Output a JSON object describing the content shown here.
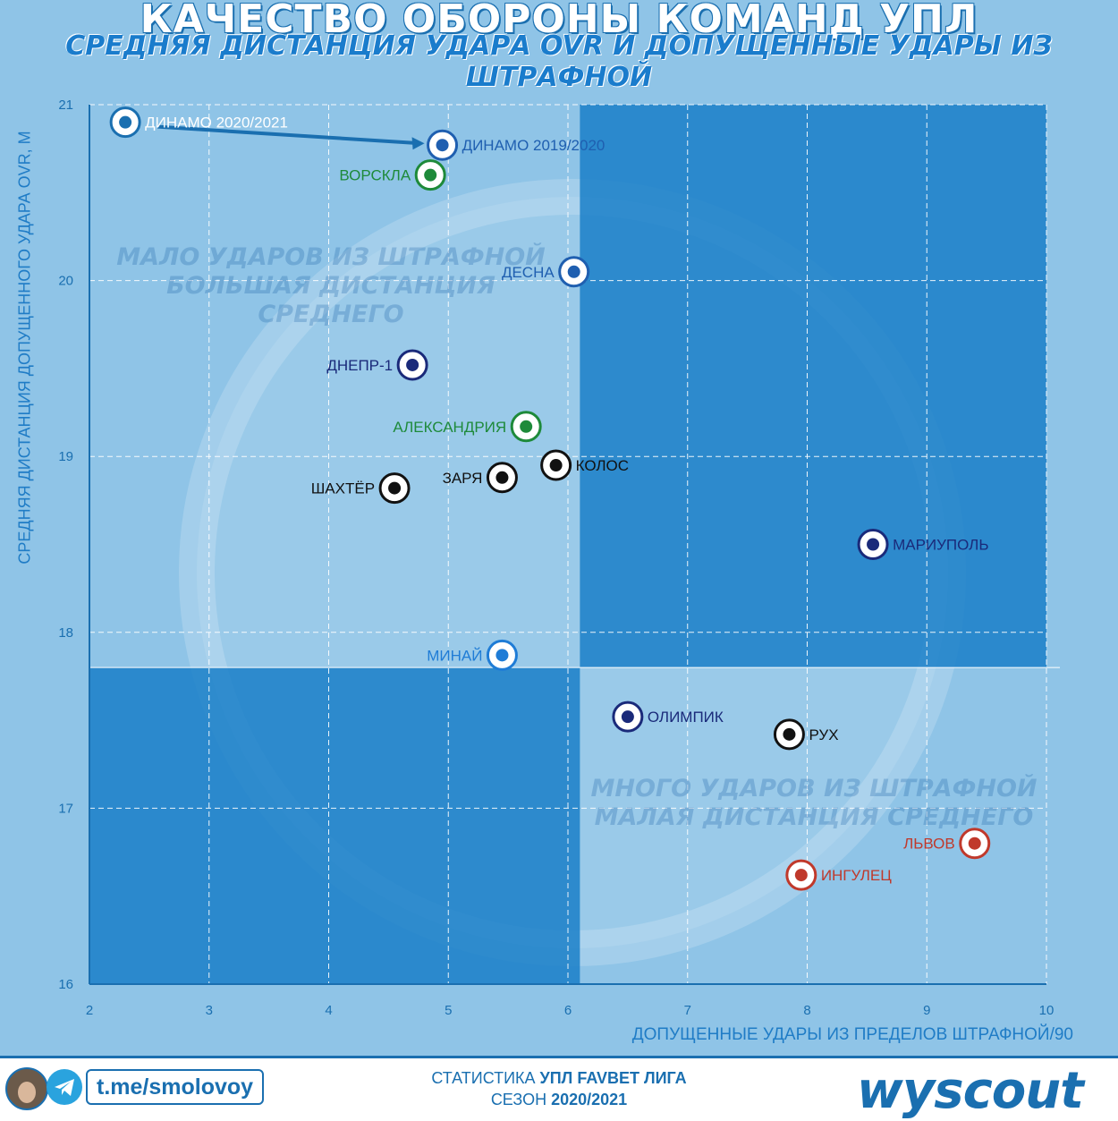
{
  "header": {
    "title": "КАЧЕСТВО ОБОРОНЫ КОМАНД УПЛ",
    "subtitle": "СРЕДНЯЯ ДИСТАНЦИЯ УДАРА OVR И ДОПУЩЕННЫЕ УДАРЫ ИЗ ШТРАФНОЙ"
  },
  "quadrants": {
    "top_left_line1": "МАЛО УДАРОВ ИЗ ШТРАФНОЙ",
    "top_left_line2": "БОЛЬШАЯ ДИСТАНЦИЯ СРЕДНЕГО",
    "bottom_right_line1": "МНОГО УДАРОВ ИЗ ШТРАФНОЙ",
    "bottom_right_line2": "МАЛАЯ ДИСТАНЦИЯ СРЕДНЕГО"
  },
  "chart_data": {
    "type": "scatter",
    "title": "КАЧЕСТВО ОБОРОНЫ КОМАНД УПЛ",
    "xlabel": "ДОПУЩЕННЫЕ УДАРЫ ИЗ ПРЕДЕЛОВ ШТРАФНОЙ/90",
    "ylabel": "СРЕДНЯЯ ДИСТАНЦИЯ ДОПУЩЕННОГО УДАРА OVR, М",
    "xlim": [
      2,
      10
    ],
    "ylim": [
      16,
      21
    ],
    "xticks": [
      2,
      3,
      4,
      5,
      6,
      7,
      8,
      9,
      10
    ],
    "yticks": [
      16,
      17,
      18,
      19,
      20,
      21
    ],
    "grid": true,
    "mean_x": 6.1,
    "mean_y": 17.8,
    "points": [
      {
        "name": "ДИНАМО 2020/2021",
        "x": 2.3,
        "y": 20.9,
        "color": "#ffffff",
        "label_side": "right"
      },
      {
        "name": "ДИНАМО 2019/2020",
        "x": 4.95,
        "y": 20.77,
        "color": "#1f5fb0",
        "label_side": "right"
      },
      {
        "name": "ВОРСКЛА",
        "x": 4.85,
        "y": 20.6,
        "color": "#1e8a3a",
        "label_side": "left"
      },
      {
        "name": "ДЕСНА",
        "x": 6.05,
        "y": 20.05,
        "color": "#1f5fb0",
        "label_side": "left"
      },
      {
        "name": "ДНЕПР-1",
        "x": 4.7,
        "y": 19.52,
        "color": "#1a2a7a",
        "label_side": "left"
      },
      {
        "name": "АЛЕКСАНДРИЯ",
        "x": 5.65,
        "y": 19.17,
        "color": "#1e8a3a",
        "label_side": "left"
      },
      {
        "name": "КОЛОС",
        "x": 5.9,
        "y": 18.95,
        "color": "#111111",
        "label_side": "right"
      },
      {
        "name": "ЗАРЯ",
        "x": 5.45,
        "y": 18.88,
        "color": "#111111",
        "label_side": "left"
      },
      {
        "name": "ШАХТЁР",
        "x": 4.55,
        "y": 18.82,
        "color": "#111111",
        "label_side": "left"
      },
      {
        "name": "МАРИУПОЛЬ",
        "x": 8.55,
        "y": 18.5,
        "color": "#1a2a7a",
        "label_side": "right"
      },
      {
        "name": "МИНАЙ",
        "x": 5.45,
        "y": 17.87,
        "color": "#1f7cd6",
        "label_side": "left"
      },
      {
        "name": "ОЛИМПИК",
        "x": 6.5,
        "y": 17.52,
        "color": "#1a2a7a",
        "label_side": "right"
      },
      {
        "name": "РУХ",
        "x": 7.85,
        "y": 17.42,
        "color": "#111111",
        "label_side": "right"
      },
      {
        "name": "ЛЬВОВ",
        "x": 9.4,
        "y": 16.8,
        "color": "#c0392b",
        "label_side": "left"
      },
      {
        "name": "ИНГУЛЕЦ",
        "x": 7.95,
        "y": 16.62,
        "color": "#c0392b",
        "label_side": "right"
      }
    ]
  },
  "footer": {
    "telegram": "t.me/smolovoy",
    "stat_prefix": "СТАТИСТИКА ",
    "stat_league": "УПЛ FAVBET ЛИГА",
    "season_prefix": "СЕЗОН ",
    "season": "2020/2021",
    "brand": "wyscout"
  },
  "colors": {
    "background": "#8fc4e7",
    "quadrant_fill": "#1a7fc8",
    "accent": "#1a6fb0"
  }
}
